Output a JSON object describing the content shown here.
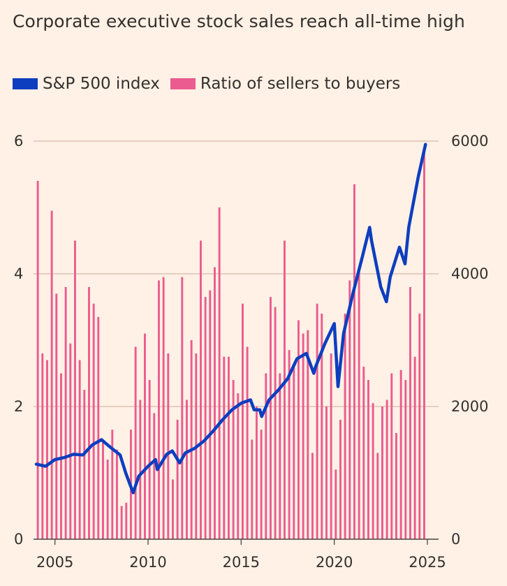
{
  "chart_data": {
    "type": "bar+line",
    "title": "Corporate executive stock sales reach all-time high",
    "legend_position": "top-left",
    "grid": true,
    "colors": {
      "line": "#0d3ebf",
      "bars": "#eb5b8f",
      "grid": "#d8b9ad",
      "background": "#fff1e5"
    },
    "x_ticks": [
      "2005",
      "2010",
      "2015",
      "2020",
      "2025"
    ],
    "x_range": [
      2004.0,
      2025.6
    ],
    "left_axis": {
      "range": [
        0,
        6
      ],
      "ticks": [
        "0",
        "2",
        "4",
        "6"
      ]
    },
    "right_axis": {
      "range": [
        0,
        6000
      ],
      "ticks": [
        "0",
        "2000",
        "4000",
        "6000"
      ]
    },
    "series": [
      {
        "name": "S&P 500 index",
        "type": "line",
        "axis": "right",
        "x": [
          2004.0,
          2004.5,
          2005.0,
          2005.5,
          2006.0,
          2006.5,
          2007.0,
          2007.5,
          2008.0,
          2008.5,
          2008.8,
          2009.0,
          2009.2,
          2009.5,
          2010.0,
          2010.4,
          2010.5,
          2011.0,
          2011.3,
          2011.7,
          2012.0,
          2012.5,
          2013.0,
          2013.5,
          2014.0,
          2014.5,
          2015.0,
          2015.5,
          2015.7,
          2016.0,
          2016.1,
          2016.5,
          2017.0,
          2017.5,
          2018.0,
          2018.5,
          2018.9,
          2019.0,
          2019.5,
          2020.0,
          2020.2,
          2020.5,
          2021.0,
          2021.5,
          2021.9,
          2022.0,
          2022.5,
          2022.8,
          2023.0,
          2023.5,
          2023.8,
          2024.0,
          2024.5,
          2024.9
        ],
        "values": [
          1130,
          1100,
          1200,
          1230,
          1280,
          1270,
          1420,
          1500,
          1380,
          1270,
          1000,
          850,
          700,
          950,
          1100,
          1200,
          1050,
          1280,
          1330,
          1150,
          1300,
          1370,
          1480,
          1630,
          1800,
          1950,
          2050,
          2100,
          1950,
          1950,
          1850,
          2100,
          2250,
          2420,
          2720,
          2800,
          2500,
          2600,
          2950,
          3250,
          2300,
          3100,
          3700,
          4250,
          4700,
          4500,
          3800,
          3580,
          3950,
          4400,
          4150,
          4700,
          5450,
          5950
        ]
      },
      {
        "name": "Ratio of sellers to buyers",
        "type": "bar",
        "axis": "left",
        "x": [
          2004.08,
          2004.33,
          2004.58,
          2004.83,
          2005.08,
          2005.33,
          2005.58,
          2005.83,
          2006.08,
          2006.33,
          2006.58,
          2006.83,
          2007.08,
          2007.33,
          2007.58,
          2007.83,
          2008.08,
          2008.33,
          2008.58,
          2008.83,
          2009.08,
          2009.33,
          2009.58,
          2009.83,
          2010.08,
          2010.33,
          2010.58,
          2010.83,
          2011.08,
          2011.33,
          2011.58,
          2011.83,
          2012.08,
          2012.33,
          2012.58,
          2012.83,
          2013.08,
          2013.33,
          2013.58,
          2013.83,
          2014.08,
          2014.33,
          2014.58,
          2014.83,
          2015.08,
          2015.33,
          2015.58,
          2015.83,
          2016.08,
          2016.33,
          2016.58,
          2016.83,
          2017.08,
          2017.33,
          2017.58,
          2017.83,
          2018.08,
          2018.33,
          2018.58,
          2018.83,
          2019.08,
          2019.33,
          2019.58,
          2019.83,
          2020.08,
          2020.33,
          2020.58,
          2020.83,
          2021.08,
          2021.33,
          2021.58,
          2021.83,
          2022.08,
          2022.33,
          2022.58,
          2022.83,
          2023.08,
          2023.33,
          2023.58,
          2023.83,
          2024.08,
          2024.33,
          2024.58,
          2024.83
        ],
        "values": [
          5.4,
          2.8,
          2.7,
          4.95,
          3.7,
          2.5,
          3.8,
          2.95,
          4.5,
          2.7,
          2.25,
          3.8,
          3.55,
          3.35,
          1.5,
          1.2,
          1.65,
          1.35,
          0.5,
          0.55,
          1.65,
          2.9,
          2.1,
          3.1,
          2.4,
          1.9,
          3.9,
          3.95,
          2.8,
          0.9,
          1.8,
          3.95,
          2.1,
          3.0,
          2.8,
          4.5,
          3.65,
          3.75,
          4.1,
          5.0,
          2.75,
          2.75,
          2.4,
          2.2,
          3.55,
          2.9,
          1.5,
          2.0,
          1.65,
          2.5,
          3.65,
          3.5,
          2.5,
          4.5,
          2.85,
          2.65,
          3.3,
          3.1,
          3.15,
          1.3,
          3.55,
          3.4,
          2.0,
          2.8,
          1.05,
          1.8,
          3.4,
          3.9,
          5.35,
          4.05,
          2.6,
          2.4,
          2.05,
          1.3,
          2.0,
          2.1,
          2.5,
          1.6,
          2.55,
          2.4,
          3.8,
          2.75,
          3.4,
          5.9
        ]
      }
    ]
  }
}
